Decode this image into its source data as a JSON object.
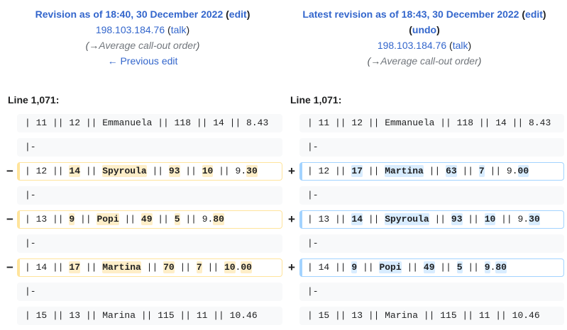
{
  "left_header": {
    "title": "Revision as of 18:40, 30 December 2022",
    "edit_label": "edit",
    "user": "198.103.184.76",
    "talk_label": "talk",
    "summary_arrow": "(→",
    "summary_section": "Average call-out order",
    "summary_close": ")",
    "prev_edit": "← Previous edit"
  },
  "right_header": {
    "title": "Latest revision as of 18:43, 30 December 2022",
    "edit_label": "edit",
    "undo_label": "undo",
    "user": "198.103.184.76",
    "talk_label": "talk",
    "summary_arrow": "(→",
    "summary_section": "Average call-out order",
    "summary_close": ")"
  },
  "line_label_left": "Line 1,071:",
  "line_label_right": "Line 1,071:",
  "colors": {
    "deleted_border": "#ffe49c",
    "added_border": "#a3d3ff",
    "link": "#3366cc"
  },
  "rows": [
    {
      "type": "context",
      "left": "| 11 || 12 || Emmanuela || 118 || 14 || 8.43",
      "right": "| 11 || 12 || Emmanuela || 118 || 14 || 8.43"
    },
    {
      "type": "context",
      "left": "|-",
      "right": "|-"
    },
    {
      "type": "change",
      "del_marker": "−",
      "add_marker": "+",
      "left": [
        [
          "| 12 || ",
          0
        ],
        [
          "14",
          1
        ],
        [
          " || ",
          0
        ],
        [
          "Spyroula",
          1
        ],
        [
          " || ",
          0
        ],
        [
          "93",
          1
        ],
        [
          " || ",
          0
        ],
        [
          "10",
          1
        ],
        [
          " || 9.",
          0
        ],
        [
          "30",
          1
        ]
      ],
      "right": [
        [
          "| 12 || ",
          0
        ],
        [
          "17",
          1
        ],
        [
          " || ",
          0
        ],
        [
          "Martina",
          1
        ],
        [
          " || ",
          0
        ],
        [
          "63",
          1
        ],
        [
          " || ",
          0
        ],
        [
          "7",
          1
        ],
        [
          " || 9.",
          0
        ],
        [
          "00",
          1
        ]
      ]
    },
    {
      "type": "context",
      "left": "|-",
      "right": "|-"
    },
    {
      "type": "change",
      "del_marker": "−",
      "add_marker": "+",
      "left": [
        [
          "| 13 || ",
          0
        ],
        [
          "9",
          1
        ],
        [
          " || ",
          0
        ],
        [
          "Popi",
          1
        ],
        [
          " || ",
          0
        ],
        [
          "49",
          1
        ],
        [
          " || ",
          0
        ],
        [
          "5",
          1
        ],
        [
          " || 9.",
          0
        ],
        [
          "80",
          1
        ]
      ],
      "right": [
        [
          "| 13 || ",
          0
        ],
        [
          "14",
          1
        ],
        [
          " || ",
          0
        ],
        [
          "Spyroula",
          1
        ],
        [
          " || ",
          0
        ],
        [
          "93",
          1
        ],
        [
          " || ",
          0
        ],
        [
          "10",
          1
        ],
        [
          " || 9.",
          0
        ],
        [
          "30",
          1
        ]
      ]
    },
    {
      "type": "context",
      "left": "|-",
      "right": "|-"
    },
    {
      "type": "change",
      "del_marker": "−",
      "add_marker": "+",
      "left": [
        [
          "| 14 || ",
          0
        ],
        [
          "17",
          1
        ],
        [
          " || ",
          0
        ],
        [
          "Martina",
          1
        ],
        [
          " || ",
          0
        ],
        [
          "70",
          1
        ],
        [
          " || ",
          0
        ],
        [
          "7",
          1
        ],
        [
          " || ",
          0
        ],
        [
          "10",
          1
        ],
        [
          ".",
          0
        ],
        [
          "00",
          1
        ]
      ],
      "right": [
        [
          "| 14 || ",
          0
        ],
        [
          "9",
          1
        ],
        [
          " || ",
          0
        ],
        [
          "Popi",
          1
        ],
        [
          " || ",
          0
        ],
        [
          "49",
          1
        ],
        [
          " || ",
          0
        ],
        [
          "5",
          1
        ],
        [
          " || ",
          0
        ],
        [
          "9",
          1
        ],
        [
          ".",
          0
        ],
        [
          "80",
          1
        ]
      ]
    },
    {
      "type": "context",
      "left": "|-",
      "right": "|-"
    },
    {
      "type": "context",
      "left": "| 15 || 13 || Marina || 115 || 11 || 10.46",
      "right": "| 15 || 13 || Marina || 115 || 11 || 10.46"
    }
  ]
}
